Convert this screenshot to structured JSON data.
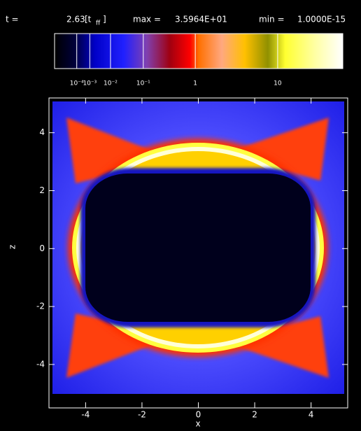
{
  "chart_data": {
    "type": "heatmap",
    "header": {
      "time_label": "t =",
      "time_value": "2.63",
      "time_unit_open": "[t",
      "time_unit_sub": "ff",
      "time_unit_close": "]",
      "max_label": "max =",
      "max": {
        "value": 35.964,
        "label": "3.5964E+01"
      },
      "min_label": "min =",
      "min": {
        "value": 1e-15,
        "label": "1.0000E-15"
      }
    },
    "colorbar_ticks": [
      {
        "value": 0.0001,
        "label": "10⁻⁴"
      },
      {
        "value": 0.001,
        "label": "10⁻³"
      },
      {
        "value": 0.01,
        "label": "10⁻²"
      },
      {
        "value": 0.1,
        "label": "10⁻¹"
      },
      1,
      10
    ],
    "x_label": "x",
    "y_label": "z",
    "xlim": [
      -5.3,
      5.3
    ],
    "ylim": [
      -5.5,
      5.2
    ],
    "xticks": [
      -4,
      -2,
      0,
      2,
      4
    ],
    "yticks": [
      -4,
      -2,
      0,
      2,
      4
    ]
  }
}
